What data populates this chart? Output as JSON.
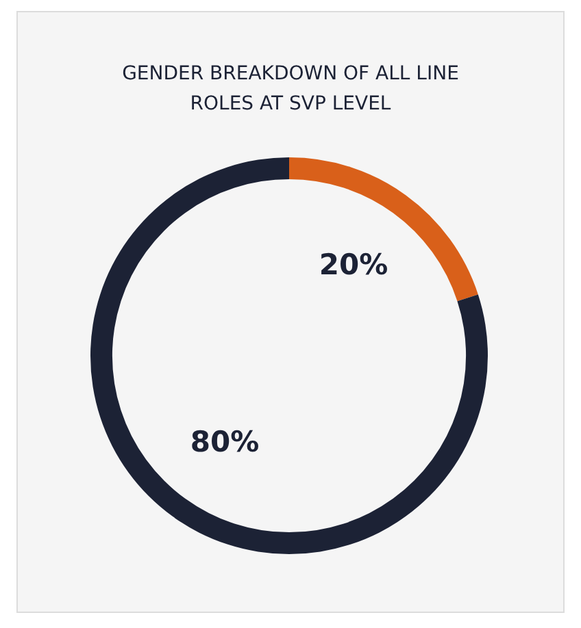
{
  "chart_data": {
    "type": "donut",
    "title": "GENDER BREAKDOWN OF ALL LINE ROLES AT SVP LEVEL",
    "categories": [
      null,
      null
    ],
    "values": [
      20,
      80
    ],
    "colors": [
      "#d9601a",
      "#1c2235"
    ],
    "value_labels": [
      "20%",
      "80%"
    ],
    "legend": false
  }
}
